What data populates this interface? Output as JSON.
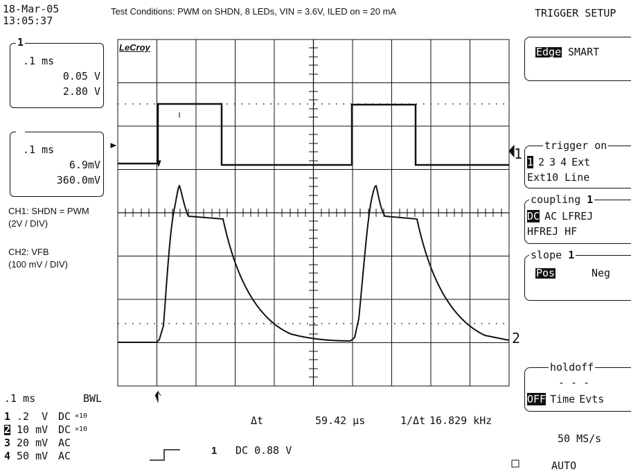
{
  "header": {
    "date": "18-Mar-05",
    "time": "13:05:37",
    "conditions": "Test Conditions: PWM on SHDN, 8 LEDs, VIN = 3.6V, ILED on = 20 mA",
    "menu_title": "TRIGGER SETUP"
  },
  "brand": "LeCroy",
  "channel_boxes": [
    {
      "id": "1",
      "timebase": ".1 ms",
      "offset": "0.05 V",
      "scale": "2.80 V"
    },
    {
      "id": "2",
      "timebase": ".1 ms",
      "offset": "6.9mV",
      "scale": "360.0mV"
    }
  ],
  "annotations": [
    "CH1: SHDN = PWM",
    "(2V / DIV)",
    "CH2: VFB",
    "(100 mV / DIV)"
  ],
  "trace_markers": [
    "1",
    "2"
  ],
  "bottom": {
    "timebase": ".1 ms",
    "bwl": "BWL",
    "channels": [
      {
        "id": "1",
        "scale": ".2  V",
        "coupling": "DC",
        "probe": "×10"
      },
      {
        "id": "2",
        "scale": "10 mV",
        "coupling": "DC",
        "probe": "×10"
      },
      {
        "id": "3",
        "scale": "20 mV",
        "coupling": "AC"
      },
      {
        "id": "4",
        "scale": "50 mV",
        "coupling": "AC"
      }
    ],
    "measure": {
      "dt_label": "Δt",
      "dt": "59.42 μs",
      "freq_label": "1/Δt",
      "freq": "16.829 kHz"
    },
    "trigger": {
      "source": "1",
      "level": "DC 0.88 V"
    },
    "sample_rate": "50 MS/s",
    "mode": "AUTO"
  },
  "menu": {
    "type": {
      "selected": "Edge",
      "other": "SMART"
    },
    "trigger_on": {
      "title": "trigger on",
      "options": [
        "1",
        "2",
        "3",
        "4",
        "Ext"
      ],
      "options2": [
        "Ext10",
        "Line"
      ]
    },
    "coupling": {
      "title": "coupling",
      "channel": "1",
      "options": [
        "DC",
        "AC",
        "LFREJ"
      ],
      "options2": [
        "HFREJ",
        "HF"
      ]
    },
    "slope": {
      "title": "slope",
      "channel": "1",
      "options": [
        "Pos",
        "Neg"
      ]
    },
    "holdoff": {
      "title": "holdoff",
      "value": "- - -",
      "options": [
        "OFF",
        "Time",
        "Evts"
      ]
    }
  }
}
